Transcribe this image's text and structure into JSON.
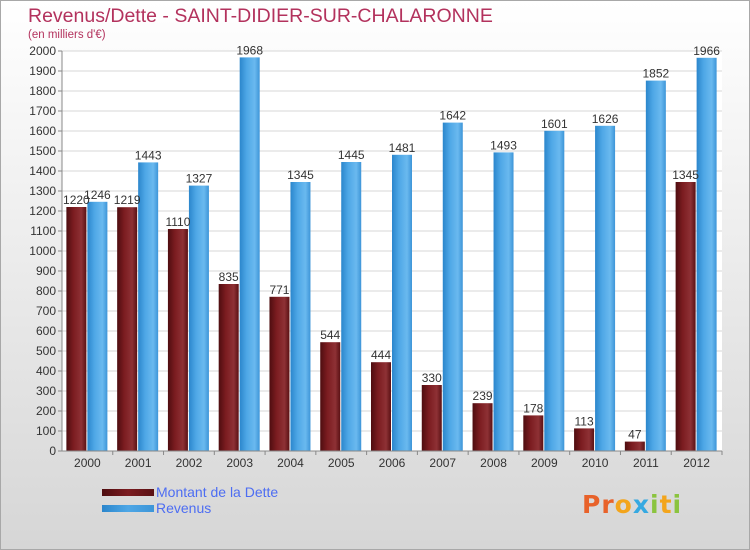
{
  "header": {
    "title": "Revenus/Dette - SAINT-DIDIER-SUR-CHALARONNE",
    "subtitle": "(en milliers d'€)"
  },
  "legend": {
    "debt_label": "Montant de la Dette",
    "revenue_label": "Revenus"
  },
  "logo": {
    "text": "Proxiti"
  },
  "colors": {
    "debt": "#7b1c20",
    "revenue": "#4ea7e6",
    "title": "#b3325d",
    "legend_text": "#4d6df2"
  },
  "chart_data": {
    "type": "bar",
    "title": "Revenus/Dette - SAINT-DIDIER-SUR-CHALARONNE",
    "subtitle": "(en milliers d'€)",
    "categories": [
      "2000",
      "2001",
      "2002",
      "2003",
      "2004",
      "2005",
      "2006",
      "2007",
      "2008",
      "2009",
      "2010",
      "2011",
      "2012"
    ],
    "series": [
      {
        "name": "Montant de la Dette",
        "values": [
          1220,
          1219,
          1110,
          835,
          771,
          544,
          444,
          330,
          239,
          178,
          113,
          47,
          1345
        ]
      },
      {
        "name": "Revenus",
        "values": [
          1246,
          1443,
          1327,
          1968,
          1345,
          1445,
          1481,
          1642,
          1493,
          1601,
          1626,
          1852,
          1966
        ]
      }
    ],
    "ylim": [
      0,
      2000
    ],
    "yticks": [
      0,
      100,
      200,
      300,
      400,
      500,
      600,
      700,
      800,
      900,
      1000,
      1100,
      1200,
      1300,
      1400,
      1500,
      1600,
      1700,
      1800,
      1900,
      2000
    ],
    "xlabel": "",
    "ylabel": "",
    "grid": true,
    "legend_position": "bottom-left"
  }
}
